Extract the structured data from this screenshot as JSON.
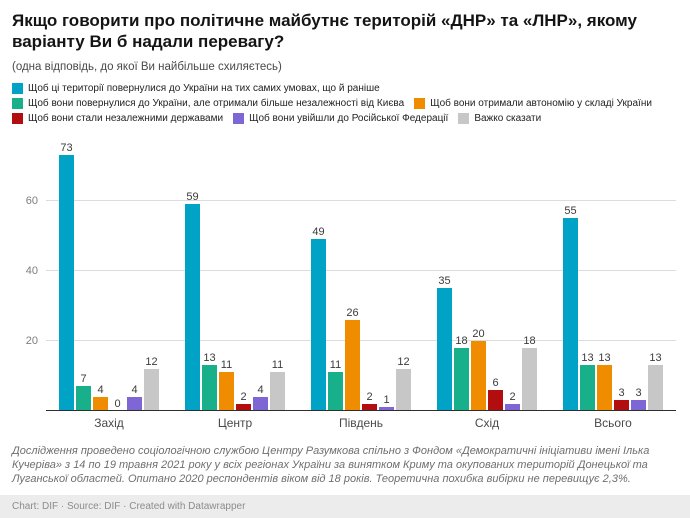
{
  "title": "Якщо говорити про політичне майбутнє територій «ДНР» та «ЛНР», якому варіанту Ви б надали перевагу?",
  "subtitle": "(одна відповідь, до якої Ви найбільше схиляєтесь)",
  "chart_data": {
    "type": "bar",
    "variant": "grouped-column",
    "categories": [
      "Захід",
      "Центр",
      "Південь",
      "Схід",
      "Всього"
    ],
    "series": [
      {
        "name": "Щоб ці території повернулися до України на тих самих умовах, що й раніше",
        "color": "#00a2c6",
        "values": [
          73,
          59,
          49,
          35,
          55
        ]
      },
      {
        "name": "Щоб вони повернулися до України, але отримали більше незалежності від Києва",
        "color": "#18b08b",
        "values": [
          7,
          13,
          11,
          18,
          13
        ]
      },
      {
        "name": "Щоб вони отримали автономію у складі України",
        "color": "#ef8c00",
        "values": [
          4,
          11,
          26,
          20,
          13
        ]
      },
      {
        "name": "Щоб вони стали незалежними державами",
        "color": "#b20e10",
        "values": [
          0,
          2,
          2,
          6,
          3
        ]
      },
      {
        "name": "Щоб вони увійшли до Російської Федерації",
        "color": "#7e66d4",
        "values": [
          4,
          4,
          1,
          2,
          3
        ]
      },
      {
        "name": "Важко сказати",
        "color": "#c7c7c7",
        "values": [
          12,
          11,
          12,
          18,
          13
        ]
      }
    ],
    "ylim": [
      0,
      78
    ],
    "yticks": [
      20,
      40,
      60
    ],
    "grid": true,
    "legend_position": "top",
    "value_labels": true
  },
  "footnote": "Дослідження проведено соціологічною службою Центру Разумкова спільно з Фондом «Демократичні ініціативи імені Ілька Кучеріва» з 14 по 19 травня 2021 року у всіх регіонах України за винятком Криму та окупованих територій Донецької та Луганської областей. Опитано 2020 респондентів віком від 18 років. Теоретична похибка вибірки не перевищує 2,3%.",
  "attribution": "Chart: DIF · Source: DIF · Created with Datawrapper"
}
